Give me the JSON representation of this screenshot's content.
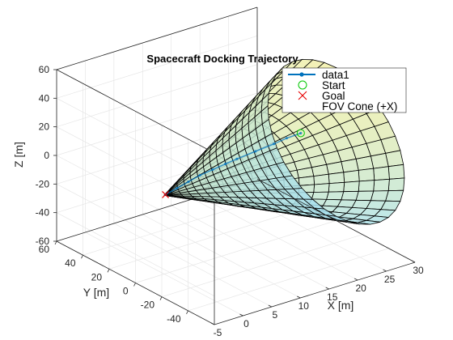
{
  "chart_data": {
    "type": "3d-line-surface",
    "title": "Spacecraft Docking Trajectory",
    "xlabel": "X [m]",
    "ylabel": "Y [m]",
    "zlabel": "Z [m]",
    "xlim": [
      -5,
      30
    ],
    "ylim": [
      -60,
      60
    ],
    "zlim": [
      -60,
      60
    ],
    "xticks": [
      "-5",
      "0",
      "5",
      "10",
      "15",
      "20",
      "25",
      "30"
    ],
    "yticks": [
      "-40",
      "-20",
      "0",
      "20",
      "40",
      "60"
    ],
    "zticks": [
      "-60",
      "-40",
      "-20",
      "0",
      "20",
      "40",
      "60"
    ],
    "y_tick_values": [
      -40,
      -20,
      0,
      20,
      40,
      60
    ],
    "z_tick_values": [
      -60,
      -40,
      -20,
      0,
      20,
      40,
      60
    ],
    "x_tick_values": [
      -5,
      0,
      5,
      10,
      15,
      20,
      25,
      30
    ],
    "grid": true,
    "legend_position": "top-right",
    "series": [
      {
        "name": "data1",
        "kind": "line",
        "color": "#0072bd",
        "points": [
          [
            22,
            -8,
            15
          ],
          [
            20,
            -6,
            13
          ],
          [
            18,
            -5,
            11
          ],
          [
            15,
            -4,
            9
          ],
          [
            12,
            -3,
            7
          ],
          [
            10,
            -3,
            6
          ],
          [
            8,
            -2,
            4
          ],
          [
            6,
            -1,
            2
          ],
          [
            4,
            -1,
            0
          ],
          [
            2,
            -1,
            -2
          ],
          [
            0,
            -1,
            -4
          ]
        ]
      },
      {
        "name": "Start",
        "kind": "marker",
        "marker": "circle",
        "color": "#00c800",
        "points": [
          [
            22,
            -8,
            15
          ]
        ]
      },
      {
        "name": "Goal",
        "kind": "marker",
        "marker": "x",
        "color": "#e60000",
        "points": [
          [
            0,
            -1,
            -4
          ]
        ]
      },
      {
        "name": "FOV Cone (+X)",
        "kind": "surface",
        "apex": [
          0,
          0,
          -5
        ],
        "axis": "+X",
        "length": 30,
        "half_angle_deg": 60,
        "edge_color": "#000000",
        "colormap": [
          "#a6e0f0",
          "#f4f0a8"
        ]
      }
    ],
    "legend": [
      "data1",
      "Start",
      "Goal",
      "FOV Cone (+X)"
    ]
  }
}
